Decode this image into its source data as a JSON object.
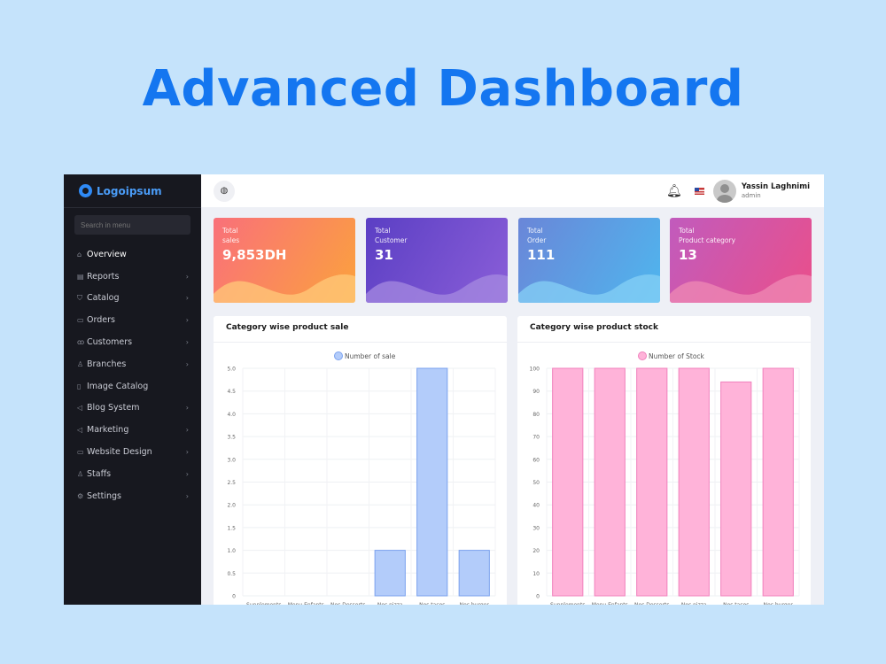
{
  "hero": {
    "title": "Advanced Dashboard"
  },
  "sidebar": {
    "logo": "Logoipsum",
    "search_placeholder": "Search in menu",
    "items": [
      {
        "label": "Overview",
        "icon": "home-icon",
        "glyph": "⌂",
        "chevron": false,
        "active": true
      },
      {
        "label": "Reports",
        "icon": "file-icon",
        "glyph": "▤",
        "chevron": true
      },
      {
        "label": "Catalog",
        "icon": "cart-icon",
        "glyph": "⛉",
        "chevron": true
      },
      {
        "label": "Orders",
        "icon": "orders-icon",
        "glyph": "▭",
        "chevron": true
      },
      {
        "label": "Customers",
        "icon": "users-icon",
        "glyph": "ꝏ",
        "chevron": true
      },
      {
        "label": "Branches",
        "icon": "person-icon",
        "glyph": "♙",
        "chevron": true
      },
      {
        "label": "Image Catalog",
        "icon": "image-icon",
        "glyph": "▯",
        "chevron": false
      },
      {
        "label": "Blog System",
        "icon": "megaphone-icon",
        "glyph": "◁",
        "chevron": true
      },
      {
        "label": "Marketing",
        "icon": "marketing-icon",
        "glyph": "◁",
        "chevron": true
      },
      {
        "label": "Website Design",
        "icon": "monitor-icon",
        "glyph": "▭",
        "chevron": true
      },
      {
        "label": "Staffs",
        "icon": "staff-icon",
        "glyph": "♙",
        "chevron": true
      },
      {
        "label": "Settings",
        "icon": "gear-icon",
        "glyph": "⚙",
        "chevron": true
      }
    ]
  },
  "topbar": {
    "user_name": "Yassin Laghnimi",
    "user_role": "admin"
  },
  "stats": [
    {
      "label_line1": "Total",
      "label_line2": "sales",
      "value": "9,853DH",
      "from": "#f9707a",
      "to": "#fba23d",
      "wave": "#ffc97a"
    },
    {
      "label_line1": "Total",
      "label_line2": "Customer",
      "value": "31",
      "from": "#5b3fc4",
      "to": "#8a5ed8",
      "wave": "#a68ae0"
    },
    {
      "label_line1": "Total",
      "label_line2": "Order",
      "value": "111",
      "from": "#6a86d8",
      "to": "#4fb6ee",
      "wave": "#86d0f6"
    },
    {
      "label_line1": "Total",
      "label_line2": "Product category",
      "value": "13",
      "from": "#c15bbd",
      "to": "#ea4f8a",
      "wave": "#ef8ab4"
    }
  ],
  "panels": {
    "sale_title": "Category wise product sale",
    "stock_title": "Category wise product stock"
  },
  "chart_data": [
    {
      "type": "bar",
      "title": "Category wise product sale",
      "categories": [
        "Supplements",
        "Menu Enfants",
        "Nos Desserts",
        "Nos pizza",
        "Nos tacos",
        "Nos burger"
      ],
      "series": [
        {
          "name": "Number of sale",
          "values": [
            0,
            0,
            0,
            1,
            5,
            1
          ]
        }
      ],
      "ylim": [
        0,
        5
      ],
      "yticks": [
        "0",
        "0.5",
        "1.0",
        "1.5",
        "2.0",
        "2.5",
        "3.0",
        "3.5",
        "4.0",
        "4.5",
        "5.0"
      ],
      "grid": true,
      "legend": "top-center",
      "fill": "#b3ccfa",
      "stroke": "#7aa1ee"
    },
    {
      "type": "bar",
      "title": "Category wise product stock",
      "categories": [
        "Supplements",
        "Menu Enfants",
        "Nos Desserts",
        "Nos pizza",
        "Nos tacos",
        "Nos burger"
      ],
      "series": [
        {
          "name": "Number of Stock",
          "values": [
            100,
            100,
            100,
            100,
            94,
            100
          ]
        }
      ],
      "ylim": [
        0,
        100
      ],
      "yticks": [
        "0",
        "10",
        "20",
        "30",
        "40",
        "50",
        "60",
        "70",
        "80",
        "90",
        "100"
      ],
      "grid": true,
      "legend": "top-center",
      "fill": "#ffb3d9",
      "stroke": "#f080bd"
    }
  ]
}
